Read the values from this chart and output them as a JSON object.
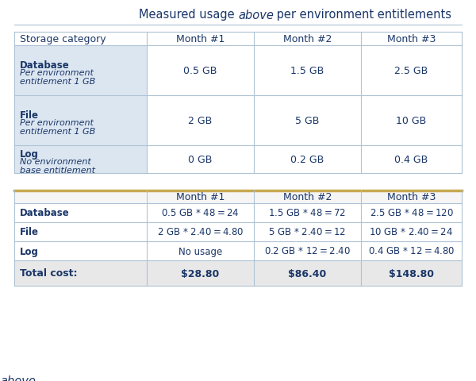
{
  "title_color": "#1a3668",
  "title_fontsize": 10.5,
  "table1_headers": [
    "Storage category",
    "Month #1",
    "Month #2",
    "Month #3"
  ],
  "table1_col0_bg": "#dce6f1",
  "table1_border_color": "#aec3d4",
  "table2_headers": [
    "",
    "Month #1",
    "Month #2",
    "Month #3"
  ],
  "table2_rows": [
    [
      "Database",
      "0.5 GB * $48 = $24",
      "1.5 GB * $48 = $72",
      "2.5 GB * $48 = $120"
    ],
    [
      "File",
      "2 GB * $2.40 = $4.80",
      "5 GB * $2.40 = $12",
      "10 GB * $2.40 = $24"
    ],
    [
      "Log",
      "No usage",
      "0.2 GB * $12 = $2.40",
      "0.4 GB * $12 = $4.80"
    ],
    [
      "Total cost:",
      "$28.80",
      "$86.40",
      "$148.80"
    ]
  ],
  "table2_total_bg": "#e8e8e8",
  "text_color": "#1a3668",
  "bg_color": "#ffffff",
  "gold_line_color": "#c8a951",
  "fig_width": 6.0,
  "fig_height": 4.81,
  "dpi": 100
}
